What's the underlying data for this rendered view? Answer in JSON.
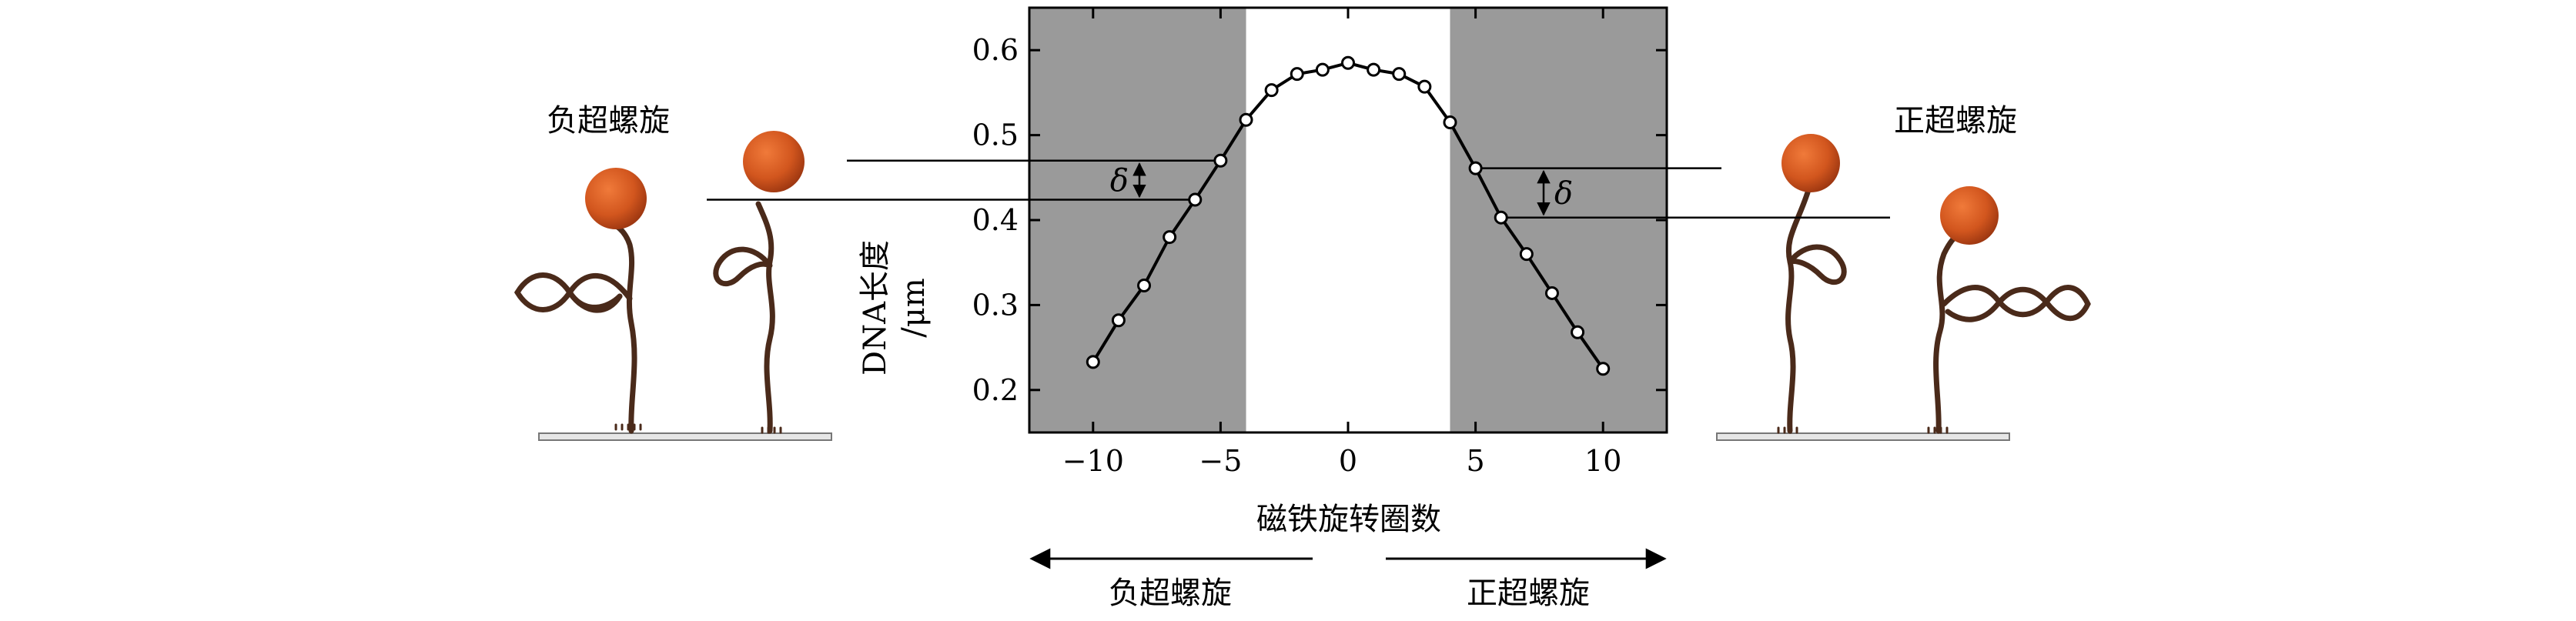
{
  "chart_data": {
    "type": "line",
    "xlabel": "磁铁旋转圈数",
    "ylabel": "DNA长度",
    "ylabel_unit": "/μm",
    "x_ticks": [
      "−10",
      "−5",
      "0",
      "5",
      "10"
    ],
    "y_ticks": [
      "0.2",
      "0.3",
      "0.4",
      "0.5",
      "0.6"
    ],
    "xlim": [
      -12.5,
      12.5
    ],
    "ylim": [
      0.15,
      0.65
    ],
    "grid": false,
    "shaded_regions": [
      [
        -12.5,
        -4
      ],
      [
        4,
        12.5
      ]
    ],
    "shaded_color": "#9a9a9a",
    "series": [
      {
        "x": [
          -10,
          -9,
          -8,
          -7,
          -6,
          -5,
          -4,
          -3,
          -2,
          -1,
          0,
          1,
          2,
          3,
          4,
          5,
          6,
          7,
          8,
          9,
          10
        ],
        "y": [
          0.233,
          0.282,
          0.323,
          0.38,
          0.424,
          0.47,
          0.518,
          0.553,
          0.572,
          0.577,
          0.585,
          0.577,
          0.572,
          0.557,
          0.515,
          0.461,
          0.403,
          0.36,
          0.314,
          0.268,
          0.225
        ]
      }
    ],
    "annotations": [
      {
        "text": "δ",
        "between_y": [
          0.47,
          0.424
        ],
        "side": "negative"
      },
      {
        "text": "δ",
        "between_y": [
          0.461,
          0.403
        ],
        "side": "positive"
      }
    ]
  },
  "side_labels": {
    "negative": "负超螺旋",
    "positive": "正超螺旋"
  },
  "arrows": {
    "left_label": "负超螺旋",
    "right_label": "正超螺旋"
  },
  "colors": {
    "bead": "#d2561e",
    "dna": "#4a2a1a",
    "surface": "#e6e6e6",
    "point_fill": "#ffffff",
    "line": "#000000"
  }
}
